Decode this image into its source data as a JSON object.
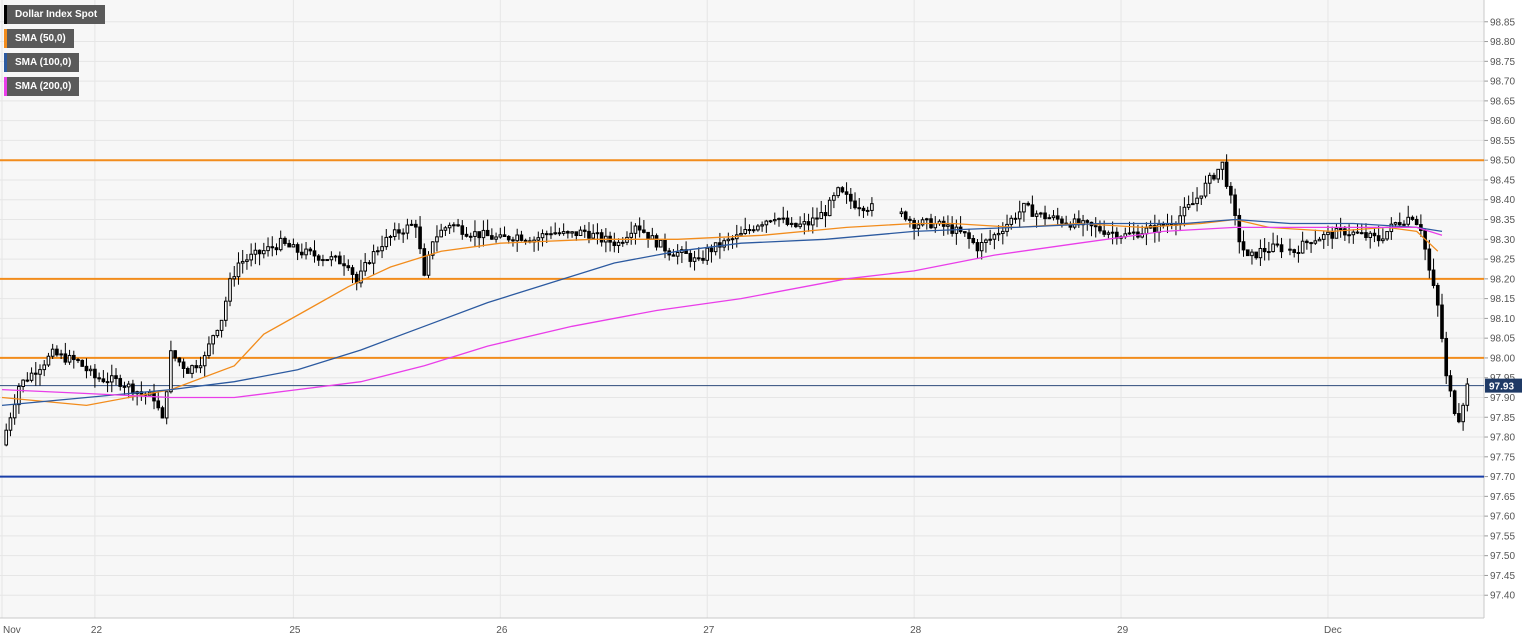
{
  "legend": [
    {
      "label": "Dollar Index Spot",
      "color": "#000000",
      "key": "price"
    },
    {
      "label": "SMA (50,0)",
      "color": "#f28c1c",
      "key": "sma50"
    },
    {
      "label": "SMA (100,0)",
      "color": "#2c5aa0",
      "key": "sma100"
    },
    {
      "label": "SMA (200,0)",
      "color": "#e93ee9",
      "key": "sma200"
    }
  ],
  "colors": {
    "background": "#f7f7f7",
    "grid": "#e6e6e6",
    "candle_up": "#ffffff",
    "candle_down": "#000000",
    "current_line": "#2c4a7a"
  },
  "chart_data": {
    "type": "candlestick",
    "title": "Dollar Index Spot",
    "ylim": [
      97.35,
      98.9
    ],
    "y_ticks": [
      "98.85",
      "98.80",
      "98.75",
      "98.70",
      "98.65",
      "98.60",
      "98.55",
      "98.50",
      "98.45",
      "98.40",
      "98.35",
      "98.30",
      "98.25",
      "98.20",
      "98.15",
      "98.10",
      "98.05",
      "98.00",
      "97.95",
      "97.90",
      "97.85",
      "97.80",
      "97.75",
      "97.70",
      "97.65",
      "97.60",
      "97.55",
      "97.50",
      "97.45",
      "97.40"
    ],
    "x_ticks": [
      "Nov",
      "22",
      "25",
      "26",
      "27",
      "28",
      "29",
      "Dec"
    ],
    "x_tick_pos": [
      0,
      22,
      69,
      118,
      167,
      216,
      265,
      314
    ],
    "x_total": 350,
    "current_price": "97.93",
    "current_value": 97.93,
    "horizontal_levels": [
      {
        "value": 98.5,
        "color": "#f28c1c"
      },
      {
        "value": 98.2,
        "color": "#f28c1c"
      },
      {
        "value": 98.0,
        "color": "#f28c1c"
      },
      {
        "value": 97.7,
        "color": "#1a3fa8"
      }
    ],
    "anchors": [
      [
        0,
        97.78
      ],
      [
        4,
        97.93
      ],
      [
        8,
        97.97
      ],
      [
        12,
        98.01
      ],
      [
        18,
        97.99
      ],
      [
        22,
        97.95
      ],
      [
        28,
        97.94
      ],
      [
        33,
        97.91
      ],
      [
        36,
        97.9
      ],
      [
        38,
        97.84
      ],
      [
        40,
        98.01
      ],
      [
        44,
        97.97
      ],
      [
        48,
        98.0
      ],
      [
        50,
        98.06
      ],
      [
        52,
        98.1
      ],
      [
        54,
        98.19
      ],
      [
        56,
        98.24
      ],
      [
        58,
        98.25
      ],
      [
        62,
        98.27
      ],
      [
        66,
        98.29
      ],
      [
        70,
        98.27
      ],
      [
        74,
        98.26
      ],
      [
        78,
        98.25
      ],
      [
        82,
        98.24
      ],
      [
        84,
        98.19
      ],
      [
        87,
        98.25
      ],
      [
        90,
        98.29
      ],
      [
        94,
        98.32
      ],
      [
        98,
        98.34
      ],
      [
        100,
        98.2
      ],
      [
        102,
        98.3
      ],
      [
        106,
        98.34
      ],
      [
        110,
        98.32
      ],
      [
        114,
        98.31
      ],
      [
        118,
        98.3
      ],
      [
        122,
        98.31
      ],
      [
        126,
        98.3
      ],
      [
        130,
        98.32
      ],
      [
        134,
        98.31
      ],
      [
        138,
        98.32
      ],
      [
        142,
        98.3
      ],
      [
        146,
        98.29
      ],
      [
        150,
        98.34
      ],
      [
        154,
        98.3
      ],
      [
        158,
        98.27
      ],
      [
        162,
        98.26
      ],
      [
        165,
        98.24
      ],
      [
        167,
        98.27
      ],
      [
        171,
        98.29
      ],
      [
        175,
        98.31
      ],
      [
        179,
        98.34
      ],
      [
        183,
        98.36
      ],
      [
        187,
        98.33
      ],
      [
        191,
        98.34
      ],
      [
        195,
        98.37
      ],
      [
        198,
        98.42
      ],
      [
        202,
        98.39
      ],
      [
        206,
        98.38
      ],
      [
        210,
        98.37
      ],
      [
        214,
        98.36
      ],
      [
        216,
        98.34
      ],
      [
        220,
        98.34
      ],
      [
        224,
        98.33
      ],
      [
        228,
        98.31
      ],
      [
        231,
        98.28
      ],
      [
        234,
        98.3
      ],
      [
        238,
        98.34
      ],
      [
        242,
        98.38
      ],
      [
        246,
        98.36
      ],
      [
        250,
        98.35
      ],
      [
        254,
        98.34
      ],
      [
        258,
        98.33
      ],
      [
        262,
        98.32
      ],
      [
        266,
        98.31
      ],
      [
        270,
        98.32
      ],
      [
        274,
        98.33
      ],
      [
        278,
        98.35
      ],
      [
        282,
        98.39
      ],
      [
        286,
        98.45
      ],
      [
        289,
        98.49
      ],
      [
        291,
        98.4
      ],
      [
        293,
        98.3
      ],
      [
        295,
        98.25
      ],
      [
        298,
        98.27
      ],
      [
        302,
        98.28
      ],
      [
        306,
        98.27
      ],
      [
        310,
        98.3
      ],
      [
        314,
        98.31
      ],
      [
        318,
        98.32
      ],
      [
        322,
        98.31
      ],
      [
        326,
        98.3
      ],
      [
        330,
        98.34
      ],
      [
        334,
        98.36
      ],
      [
        336,
        98.33
      ],
      [
        338,
        98.22
      ],
      [
        340,
        98.13
      ],
      [
        341,
        98.05
      ],
      [
        342,
        97.95
      ],
      [
        344,
        97.87
      ],
      [
        345,
        97.85
      ],
      [
        347,
        97.93
      ]
    ],
    "series": [
      {
        "name": "SMA (50,0)",
        "color": "#f28c1c",
        "points": [
          [
            0,
            97.9
          ],
          [
            20,
            97.88
          ],
          [
            40,
            97.92
          ],
          [
            55,
            97.98
          ],
          [
            62,
            98.06
          ],
          [
            72,
            98.12
          ],
          [
            82,
            98.18
          ],
          [
            92,
            98.23
          ],
          [
            104,
            98.27
          ],
          [
            118,
            98.29
          ],
          [
            140,
            98.3
          ],
          [
            160,
            98.3
          ],
          [
            180,
            98.31
          ],
          [
            200,
            98.33
          ],
          [
            216,
            98.34
          ],
          [
            225,
            98.34
          ],
          [
            240,
            98.33
          ],
          [
            255,
            98.34
          ],
          [
            270,
            98.33
          ],
          [
            284,
            98.34
          ],
          [
            292,
            98.35
          ],
          [
            300,
            98.33
          ],
          [
            315,
            98.32
          ],
          [
            328,
            98.33
          ],
          [
            335,
            98.32
          ],
          [
            340,
            98.27
          ]
        ]
      },
      {
        "name": "SMA (100,0)",
        "color": "#2c5aa0",
        "points": [
          [
            0,
            97.88
          ],
          [
            20,
            97.9
          ],
          [
            40,
            97.92
          ],
          [
            55,
            97.94
          ],
          [
            70,
            97.97
          ],
          [
            85,
            98.02
          ],
          [
            100,
            98.08
          ],
          [
            115,
            98.14
          ],
          [
            130,
            98.19
          ],
          [
            145,
            98.24
          ],
          [
            160,
            98.27
          ],
          [
            175,
            98.29
          ],
          [
            195,
            98.3
          ],
          [
            216,
            98.32
          ],
          [
            240,
            98.33
          ],
          [
            260,
            98.34
          ],
          [
            280,
            98.34
          ],
          [
            292,
            98.35
          ],
          [
            305,
            98.34
          ],
          [
            320,
            98.34
          ],
          [
            335,
            98.33
          ],
          [
            341,
            98.32
          ]
        ]
      },
      {
        "name": "SMA (200,0)",
        "color": "#e93ee9",
        "points": [
          [
            0,
            97.92
          ],
          [
            20,
            97.91
          ],
          [
            40,
            97.9
          ],
          [
            55,
            97.9
          ],
          [
            70,
            97.92
          ],
          [
            85,
            97.94
          ],
          [
            100,
            97.98
          ],
          [
            115,
            98.03
          ],
          [
            135,
            98.08
          ],
          [
            155,
            98.12
          ],
          [
            175,
            98.15
          ],
          [
            200,
            98.2
          ],
          [
            216,
            98.22
          ],
          [
            235,
            98.26
          ],
          [
            255,
            98.29
          ],
          [
            275,
            98.32
          ],
          [
            292,
            98.33
          ],
          [
            310,
            98.33
          ],
          [
            325,
            98.33
          ],
          [
            335,
            98.33
          ],
          [
            341,
            98.31
          ]
        ]
      }
    ]
  }
}
